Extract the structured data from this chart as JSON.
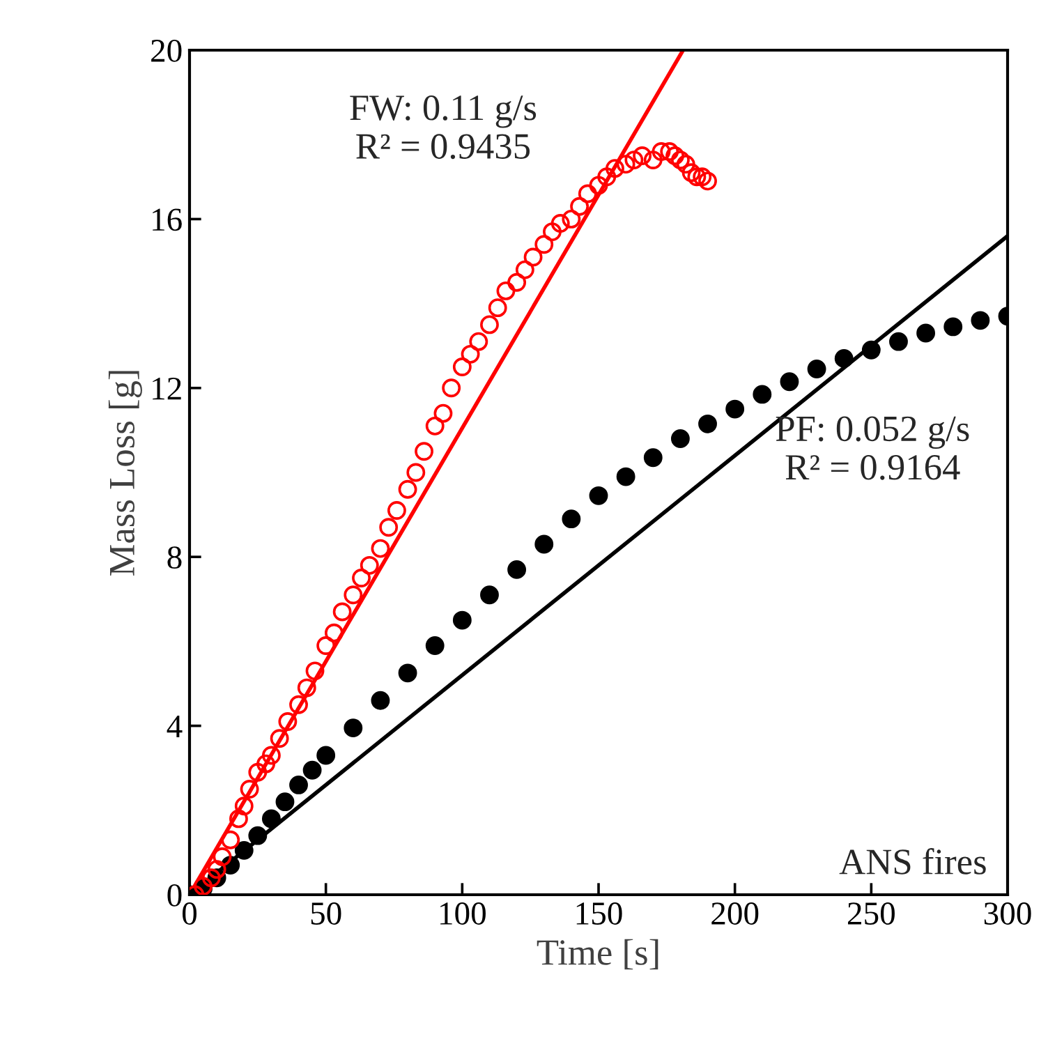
{
  "chart_data": {
    "type": "scatter",
    "xlabel": "Time [s]",
    "ylabel": "Mass Loss [g]",
    "xlim": [
      0,
      300
    ],
    "ylim": [
      0,
      20
    ],
    "xticks": [
      0,
      50,
      100,
      150,
      200,
      250,
      300
    ],
    "yticks": [
      0,
      4,
      8,
      12,
      16,
      20
    ],
    "grid": false,
    "legend": false,
    "series": [
      {
        "marker": "circle",
        "color": "#000000",
        "x": [
          0,
          5,
          10,
          15,
          20,
          25,
          30,
          35,
          40,
          45,
          50,
          60,
          70,
          80,
          90,
          100,
          110,
          120,
          130,
          140,
          150,
          160,
          170,
          180,
          190,
          200,
          210,
          220,
          230,
          240,
          250,
          260,
          270,
          280,
          290,
          300
        ],
        "values": [
          0,
          0.15,
          0.4,
          0.7,
          1.05,
          1.4,
          1.8,
          2.2,
          2.6,
          2.95,
          3.3,
          3.95,
          4.6,
          5.25,
          5.9,
          6.5,
          7.1,
          7.7,
          8.3,
          8.9,
          9.45,
          9.9,
          10.35,
          10.8,
          11.15,
          11.5,
          11.85,
          12.15,
          12.45,
          12.7,
          12.9,
          13.1,
          13.3,
          13.45,
          13.6,
          13.7
        ]
      },
      {
        "marker": "circle_open",
        "color": "#ff0000",
        "x": [
          2,
          5,
          8,
          10,
          12,
          15,
          18,
          20,
          22,
          25,
          28,
          30,
          33,
          36,
          40,
          43,
          46,
          50,
          53,
          56,
          60,
          63,
          66,
          70,
          73,
          76,
          80,
          83,
          86,
          90,
          93,
          96,
          100,
          103,
          106,
          110,
          113,
          116,
          120,
          123,
          126,
          130,
          133,
          136,
          140,
          143,
          146,
          150,
          153,
          156,
          160,
          163,
          166,
          170,
          173,
          176,
          178,
          180,
          182,
          184,
          186,
          188,
          190
        ],
        "values": [
          0,
          0.2,
          0.4,
          0.6,
          0.9,
          1.3,
          1.8,
          2.1,
          2.5,
          2.9,
          3.1,
          3.3,
          3.7,
          4.1,
          4.5,
          4.9,
          5.3,
          5.9,
          6.2,
          6.7,
          7.1,
          7.5,
          7.8,
          8.2,
          8.7,
          9.1,
          9.6,
          10.0,
          10.5,
          11.1,
          11.4,
          12.0,
          12.5,
          12.8,
          13.1,
          13.5,
          13.9,
          14.3,
          14.5,
          14.8,
          15.1,
          15.4,
          15.7,
          15.9,
          16.0,
          16.3,
          16.6,
          16.8,
          17.0,
          17.2,
          17.3,
          17.4,
          17.5,
          17.4,
          17.6,
          17.6,
          17.5,
          17.4,
          17.3,
          17.1,
          17.0,
          17.0,
          16.9
        ]
      },
      {
        "type": "line",
        "color": "#000000",
        "x": [
          0,
          300
        ],
        "values": [
          0,
          15.6
        ]
      },
      {
        "type": "line",
        "color": "#ff0000",
        "x": [
          0,
          181
        ],
        "values": [
          0,
          20
        ]
      }
    ],
    "annotations": [
      "FW: 0.11 g/s\nR² = 0.9435",
      "PF: 0.052 g/s\nR² = 0.9164",
      "ANS fires"
    ]
  }
}
